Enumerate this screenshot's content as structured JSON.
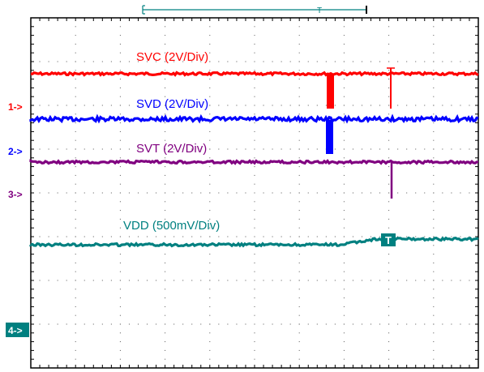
{
  "chart_data": {
    "type": "line",
    "series": [
      {
        "name": "SVC (2V/Div)",
        "color": "#ff0000",
        "marker": "1->"
      },
      {
        "name": "SVD (2V/Div)",
        "color": "#0000ff",
        "marker": "2->"
      },
      {
        "name": "SVT (2V/Div)",
        "color": "#800080",
        "marker": "3->"
      },
      {
        "name": "VDD (500mV/Div)",
        "color": "#008080",
        "marker": "4->"
      }
    ],
    "trigger_marker": "T",
    "grid": true
  }
}
